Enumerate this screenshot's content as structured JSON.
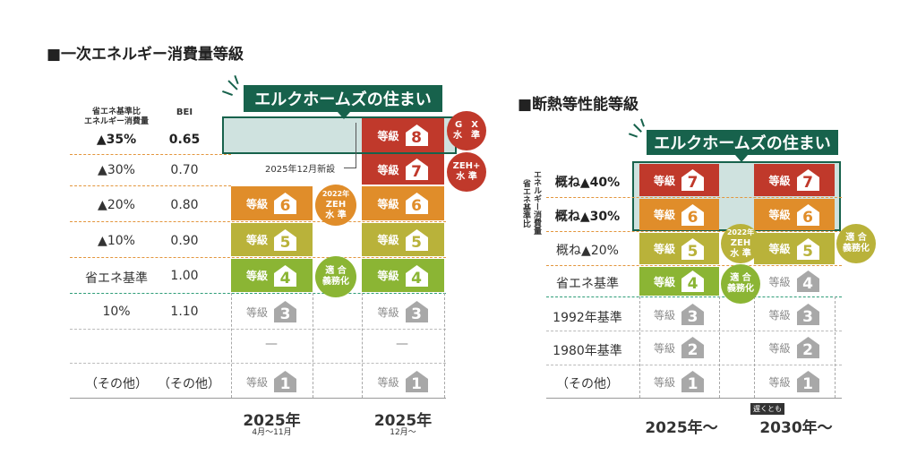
{
  "left": {
    "title": "■一次エネルギー消費量等級",
    "header_ratio_line1": "省エネ基準比",
    "header_ratio_line2": "エネルギー消費量",
    "header_bei": "BEI",
    "rows": [
      {
        "ratio": "▲35%",
        "bei": "0.65"
      },
      {
        "ratio": "▲30%",
        "bei": "0.70"
      },
      {
        "ratio": "▲20%",
        "bei": "0.80"
      },
      {
        "ratio": "▲10%",
        "bei": "0.90"
      },
      {
        "ratio": "省エネ基準",
        "bei": "1.00"
      },
      {
        "ratio": "10%",
        "bei": "1.10"
      },
      {
        "ratio": "",
        "bei": ""
      },
      {
        "ratio": "（その他）",
        "bei": "（その他）"
      }
    ],
    "banner": "エルクホームズの住まい",
    "new_setting_label": "2025年12月新設",
    "grade_word": "等級",
    "col1_grades": [
      "6",
      "5",
      "4",
      "3",
      "1"
    ],
    "col2_grades": [
      "8",
      "7",
      "6",
      "5",
      "4",
      "3",
      "1"
    ],
    "dash_mark": "—",
    "badge_gx": [
      "G",
      "X",
      "水",
      "準"
    ],
    "badge_zehplus": [
      "ZEH+",
      "水 準"
    ],
    "badge_zeh_year": "2022年",
    "badge_zeh": "ZEH",
    "badge_zeh_std": "水 準",
    "badge_mandatory": [
      "適 合",
      "義務化"
    ],
    "year1": "2025年",
    "year1_sub": "4月〜11月",
    "year2": "2025年",
    "year2_sub": "12月〜"
  },
  "right": {
    "title": "■断熱等性能等級",
    "side_label_1": "省エネ基準比",
    "side_label_2": "エネルギー消費量",
    "rows": [
      "概ね▲40%",
      "概ね▲30%",
      "概ね▲20%",
      "省エネ基準",
      "1992年基準",
      "1980年基準",
      "（その他）"
    ],
    "banner": "エルクホームズの住まい",
    "grade_word": "等級",
    "col1_grades": [
      "7",
      "6",
      "5",
      "4",
      "3",
      "2",
      "1"
    ],
    "col2_grades": [
      "7",
      "6",
      "5",
      "4",
      "3",
      "2",
      "1"
    ],
    "badge_zeh_year": "2022年",
    "badge_zeh": "ZEH",
    "badge_zeh_std": "水 準",
    "badge_mandatory": [
      "適 合",
      "義務化"
    ],
    "badge_mandatory2": [
      "適 合",
      "義務化"
    ],
    "year_tag": "遅くとも",
    "year1": "2025年〜",
    "year2": "2030年〜"
  },
  "colors": {
    "red": "#c0392b",
    "orange": "#e08d2a",
    "yellow": "#b9b23a",
    "green": "#8bb534",
    "gray": "#a8a8a8",
    "banner": "#17624c",
    "highlight": "#cfe2df"
  }
}
